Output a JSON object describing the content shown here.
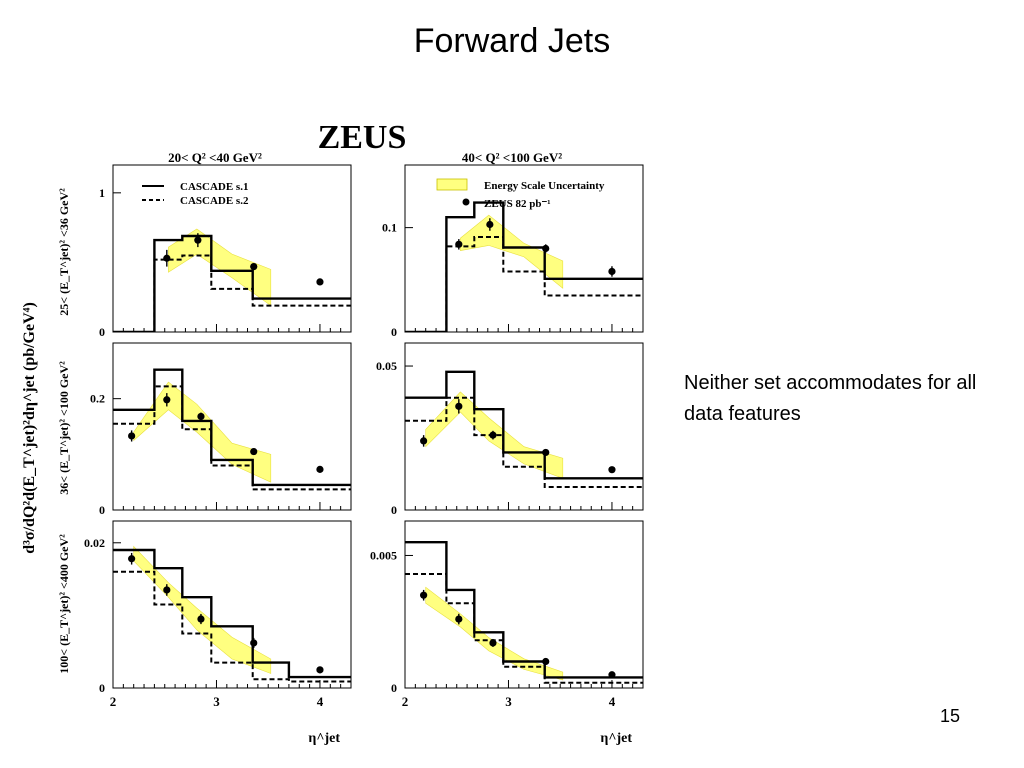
{
  "slide": {
    "title": "Forward Jets",
    "note": "Neither set accommodates for all data features",
    "page_number": "15"
  },
  "colors": {
    "band": "#ffff80",
    "band_edge": "#e8e040",
    "line": "#000000"
  },
  "chart_data": {
    "type": "step-histogram",
    "experiment": "ZEUS",
    "ylabel": "d³σ/dQ²d(E_T^jet)²dη^jet (pb/GeV⁴)",
    "xlabel": "η^jet",
    "x_ticks": [
      "2",
      "3",
      "4"
    ],
    "xlim": [
      2.0,
      4.3
    ],
    "bins": [
      2.0,
      2.4,
      2.67,
      2.95,
      3.35,
      3.7,
      4.3
    ],
    "data_x": [
      2.52,
      2.82,
      3.36,
      4.0
    ],
    "col_titles": [
      "20< Q² <40 GeV²",
      "40< Q² <100 GeV²"
    ],
    "row_titles": [
      "25< (E_T^jet)² <36 GeV²",
      "36< (E_T^jet)² <100 GeV²",
      "100< (E_T^jet)² <400 GeV²"
    ],
    "legend": [
      {
        "label": "CASCADE s.1",
        "style": "solid line"
      },
      {
        "label": "CASCADE s.2",
        "style": "dashed line"
      },
      {
        "label": "Energy Scale Uncertainty",
        "style": "yellow band"
      },
      {
        "label": "ZEUS 82 pb⁻¹",
        "style": "filled circle"
      }
    ],
    "panels": [
      {
        "id": "q2-20-40_et-25-36",
        "ylim": [
          0,
          1.2
        ],
        "y_ticks": [
          {
            "v": 0,
            "label": "0"
          },
          {
            "v": 1,
            "label": "1"
          }
        ],
        "s1": [
          0,
          0.66,
          0.69,
          0.44,
          0.24,
          0.24
        ],
        "s2": [
          0,
          0.52,
          0.55,
          0.31,
          0.19,
          0.19
        ],
        "band_lo": [
          null,
          0.43,
          0.56,
          0.39,
          0.19,
          null
        ],
        "band_hi": [
          null,
          0.61,
          0.74,
          0.56,
          0.45,
          null
        ],
        "data": [
          0.53,
          0.66,
          0.47,
          0.36
        ],
        "err": [
          0.06,
          0.05,
          0.02,
          0.02
        ]
      },
      {
        "id": "q2-40-100_et-25-36",
        "ylim": [
          0,
          0.16
        ],
        "y_ticks": [
          {
            "v": 0,
            "label": "0"
          },
          {
            "v": 0.1,
            "label": "0.1"
          }
        ],
        "s1": [
          0,
          0.11,
          0.124,
          0.081,
          0.051,
          0.051
        ],
        "s2": [
          0,
          0.082,
          0.091,
          0.058,
          0.035,
          0.035
        ],
        "band_lo": [
          null,
          0.078,
          0.083,
          0.072,
          0.042,
          null
        ],
        "band_hi": [
          null,
          0.09,
          0.112,
          0.085,
          0.068,
          null
        ],
        "data": [
          0.084,
          0.103,
          0.08,
          0.058
        ],
        "err": [
          0.005,
          0.006,
          0.004,
          0.005
        ]
      },
      {
        "id": "q2-20-40_et-36-100",
        "ylim": [
          0,
          0.3
        ],
        "y_ticks": [
          {
            "v": 0,
            "label": "0"
          },
          {
            "v": 0.2,
            "label": "0.2"
          }
        ],
        "s1": [
          0.18,
          0.252,
          0.16,
          0.09,
          0.045,
          0.045
        ],
        "s2": [
          0.155,
          0.222,
          0.145,
          0.08,
          0.037,
          0.037
        ],
        "band_lo": [
          0.125,
          0.18,
          0.14,
          0.082,
          0.05,
          null
        ],
        "band_hi": [
          0.14,
          0.23,
          0.19,
          0.12,
          0.1,
          null
        ],
        "data": [
          0.133,
          0.198,
          0.168,
          0.105,
          0.073
        ],
        "err": [
          0.01,
          0.012,
          0.007,
          0.005,
          0.004
        ],
        "data_x_override": [
          2.18,
          2.52,
          2.85,
          3.36,
          4.0
        ]
      },
      {
        "id": "q2-40-100_et-36-100",
        "ylim": [
          0,
          0.058
        ],
        "y_ticks": [
          {
            "v": 0,
            "label": "0"
          },
          {
            "v": 0.05,
            "label": "0.05"
          }
        ],
        "s1": [
          0.039,
          0.048,
          0.035,
          0.02,
          0.011,
          0.011
        ],
        "s2": [
          0.031,
          0.039,
          0.026,
          0.015,
          0.008,
          0.008
        ],
        "band_lo": [
          0.022,
          0.034,
          0.024,
          0.016,
          0.011,
          null
        ],
        "band_hi": [
          0.028,
          0.041,
          0.032,
          0.022,
          0.018,
          null
        ],
        "data": [
          0.024,
          0.036,
          0.026,
          0.02,
          0.014
        ],
        "err": [
          0.002,
          0.0025,
          0.0015,
          0.001,
          0.001
        ],
        "data_x_override": [
          2.18,
          2.52,
          2.85,
          3.36,
          4.0
        ]
      },
      {
        "id": "q2-20-40_et-100-400",
        "ylim": [
          0,
          0.023
        ],
        "y_ticks": [
          {
            "v": 0,
            "label": "0"
          },
          {
            "v": 0.02,
            "label": "0.02"
          }
        ],
        "s1": [
          0.019,
          0.0165,
          0.0125,
          0.0085,
          0.0035,
          0.0015
        ],
        "s2": [
          0.016,
          0.0115,
          0.0075,
          0.0035,
          0.0012,
          0.0009
        ],
        "band_lo": [
          0.0175,
          0.0125,
          0.008,
          0.004,
          0.002,
          null
        ],
        "band_hi": [
          0.0195,
          0.0145,
          0.011,
          0.007,
          0.004,
          null
        ],
        "data": [
          0.0178,
          0.0135,
          0.0095,
          0.0062,
          0.0025
        ],
        "err": [
          0.0008,
          0.0008,
          0.0007,
          0.0007,
          0.0003
        ],
        "data_x_override": [
          2.18,
          2.52,
          2.85,
          3.36,
          4.0
        ]
      },
      {
        "id": "q2-40-100_et-100-400",
        "ylim": [
          0,
          0.0063
        ],
        "y_ticks": [
          {
            "v": 0,
            "label": "0"
          },
          {
            "v": 0.005,
            "label": "0.005"
          }
        ],
        "s1": [
          0.0055,
          0.0037,
          0.0021,
          0.001,
          0.0004,
          0.0004
        ],
        "s2": [
          0.0043,
          0.0032,
          0.0018,
          0.0008,
          0.0002,
          0.0002
        ],
        "band_lo": [
          0.0032,
          0.0023,
          0.0014,
          0.0007,
          0.0003,
          null
        ],
        "band_hi": [
          0.0038,
          0.0028,
          0.0019,
          0.0011,
          0.0006,
          null
        ],
        "data": [
          0.0035,
          0.0026,
          0.0017,
          0.001,
          0.0005
        ],
        "err": [
          0.0002,
          0.0002,
          0.00015,
          0.0001,
          5e-05
        ],
        "data_x_override": [
          2.18,
          2.52,
          2.85,
          3.36,
          4.0
        ]
      }
    ]
  }
}
